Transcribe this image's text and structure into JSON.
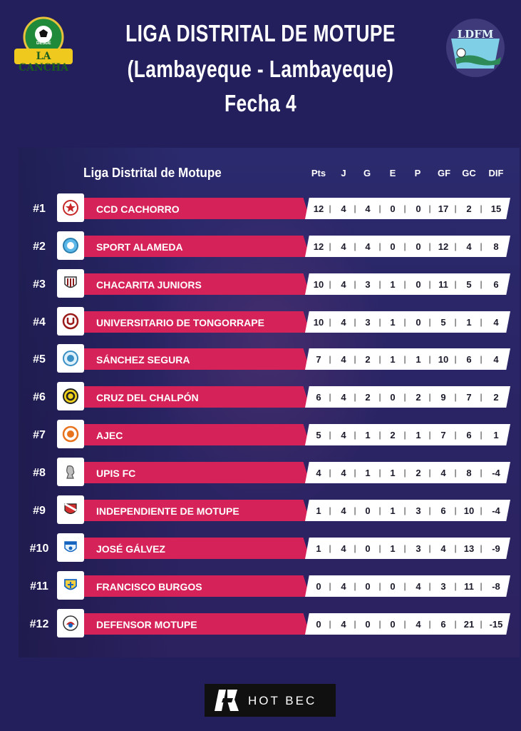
{
  "header": {
    "title_line1": "LIGA DISTRITAL DE MOTUPE",
    "title_line2": "(Lambayeque - Lambayeque)",
    "title_line3": "Fecha 4",
    "left_logo": {
      "top_text": "DESDE",
      "brand_text": "LA CANCHA"
    },
    "right_logo": {
      "text": "LDFM"
    }
  },
  "table": {
    "league_label": "Liga Distrital de Motupe",
    "columns": [
      "Pts",
      "J",
      "G",
      "E",
      "P",
      "GF",
      "GC",
      "DIF"
    ],
    "rows": [
      {
        "rank": "#1",
        "team": "CCD CACHORRO",
        "pts": "12",
        "j": "4",
        "g": "4",
        "e": "0",
        "p": "0",
        "gf": "17",
        "gc": "2",
        "dif": "15"
      },
      {
        "rank": "#2",
        "team": "SPORT ALAMEDA",
        "pts": "12",
        "j": "4",
        "g": "4",
        "e": "0",
        "p": "0",
        "gf": "12",
        "gc": "4",
        "dif": "8"
      },
      {
        "rank": "#3",
        "team": "CHACARITA JUNIORS",
        "pts": "10",
        "j": "4",
        "g": "3",
        "e": "1",
        "p": "0",
        "gf": "11",
        "gc": "5",
        "dif": "6"
      },
      {
        "rank": "#4",
        "team": "UNIVERSITARIO DE TONGORRAPE",
        "pts": "10",
        "j": "4",
        "g": "3",
        "e": "1",
        "p": "0",
        "gf": "5",
        "gc": "1",
        "dif": "4"
      },
      {
        "rank": "#5",
        "team": "SÁNCHEZ SEGURA",
        "pts": "7",
        "j": "4",
        "g": "2",
        "e": "1",
        "p": "1",
        "gf": "10",
        "gc": "6",
        "dif": "4"
      },
      {
        "rank": "#6",
        "team": "CRUZ DEL CHALPÓN",
        "pts": "6",
        "j": "4",
        "g": "2",
        "e": "0",
        "p": "2",
        "gf": "9",
        "gc": "7",
        "dif": "2"
      },
      {
        "rank": "#7",
        "team": "AJEC",
        "pts": "5",
        "j": "4",
        "g": "1",
        "e": "2",
        "p": "1",
        "gf": "7",
        "gc": "6",
        "dif": "1"
      },
      {
        "rank": "#8",
        "team": "UPIS FC",
        "pts": "4",
        "j": "4",
        "g": "1",
        "e": "1",
        "p": "2",
        "gf": "4",
        "gc": "8",
        "dif": "-4"
      },
      {
        "rank": "#9",
        "team": "INDEPENDIENTE DE MOTUPE",
        "pts": "1",
        "j": "4",
        "g": "0",
        "e": "1",
        "p": "3",
        "gf": "6",
        "gc": "10",
        "dif": "-4"
      },
      {
        "rank": "#10",
        "team": "JOSÉ GÁLVEZ",
        "pts": "1",
        "j": "4",
        "g": "0",
        "e": "1",
        "p": "3",
        "gf": "4",
        "gc": "13",
        "dif": "-9"
      },
      {
        "rank": "#11",
        "team": "FRANCISCO BURGOS",
        "pts": "0",
        "j": "4",
        "g": "0",
        "e": "0",
        "p": "4",
        "gf": "3",
        "gc": "11",
        "dif": "-8"
      },
      {
        "rank": "#12",
        "team": "DEFENSOR MOTUPE",
        "pts": "0",
        "j": "4",
        "g": "0",
        "e": "0",
        "p": "4",
        "gf": "6",
        "gc": "21",
        "dif": "-15"
      }
    ]
  },
  "sponsor": {
    "text": "HOT BEC"
  },
  "colors": {
    "background": "#221f5c",
    "team_bar": "#d5235a",
    "stats_bar": "#ffffff"
  }
}
